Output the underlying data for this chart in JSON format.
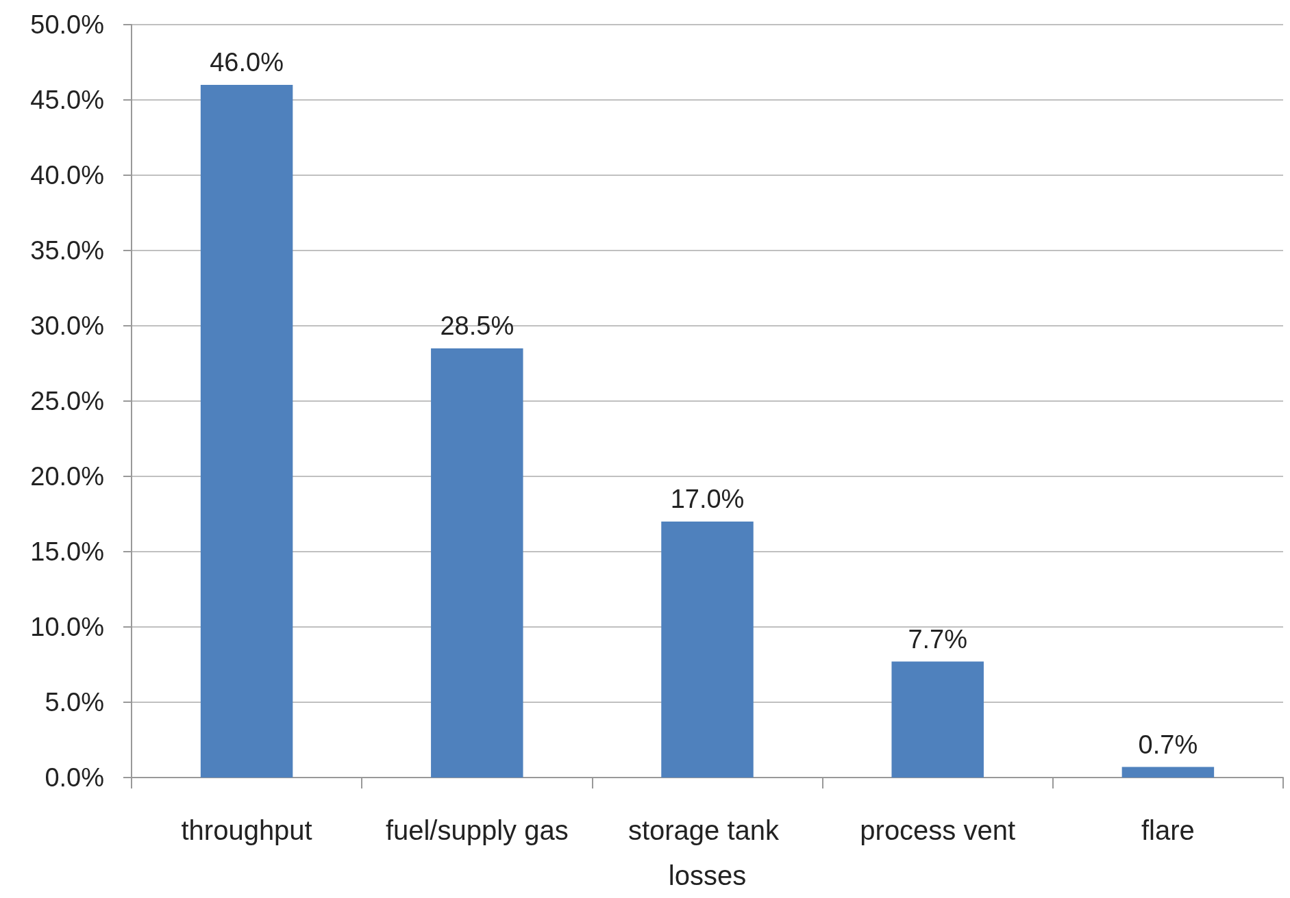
{
  "chart_data": {
    "type": "bar",
    "categories": [
      "throughput",
      "fuel/supply gas",
      "storage tank losses",
      "process vent",
      "flare"
    ],
    "values": [
      46.0,
      28.5,
      17.0,
      7.7,
      0.7
    ],
    "value_labels": [
      "46.0%",
      "28.5%",
      "17.0%",
      "7.7%",
      "0.7%"
    ],
    "color": "#4f81bd",
    "ylim": [
      0,
      50
    ],
    "yticks": [
      {
        "value": 0,
        "label": "0.0%"
      },
      {
        "value": 5,
        "label": "5.0%"
      },
      {
        "value": 10,
        "label": "10.0%"
      },
      {
        "value": 15,
        "label": "15.0%"
      },
      {
        "value": 20,
        "label": "20.0%"
      },
      {
        "value": 25,
        "label": "25.0%"
      },
      {
        "value": 30,
        "label": "30.0%"
      },
      {
        "value": 35,
        "label": "35.0%"
      },
      {
        "value": 40,
        "label": "40.0%"
      },
      {
        "value": 45,
        "label": "45.0%"
      },
      {
        "value": 50,
        "label": "50.0%"
      }
    ],
    "grid": "y"
  }
}
